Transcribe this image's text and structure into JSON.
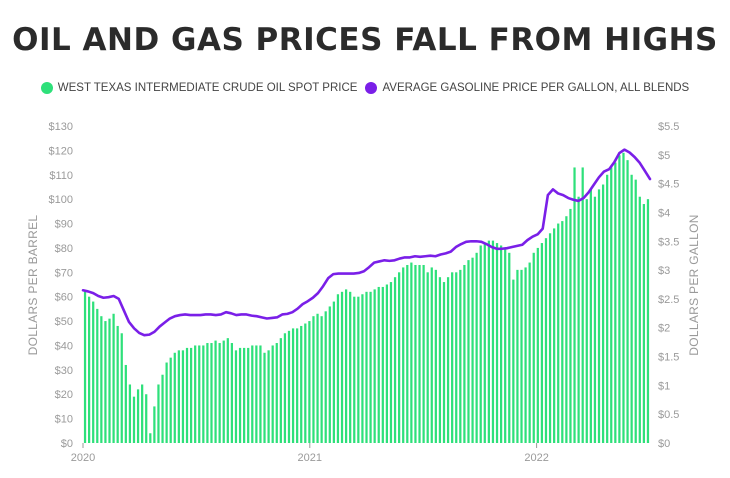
{
  "chart_data": {
    "type": "bar+line",
    "title": "OIL AND GAS PRICES FALL FROM HIGHS",
    "legend_placement": "top",
    "grid": false,
    "colors": {
      "bars": "#2ee07a",
      "line": "#7a1fe8"
    },
    "x_start": "2020-01",
    "x_end": "2022-06",
    "x_ticks": [
      {
        "label": "2020",
        "date": "2020-01"
      },
      {
        "label": "2021",
        "date": "2021-01"
      },
      {
        "label": "2022",
        "date": "2022-01"
      }
    ],
    "left_axis": {
      "label": "DOLLARS PER BARREL",
      "range": [
        0,
        130
      ],
      "ticks": [
        "$0",
        "$10",
        "$20",
        "$30",
        "$40",
        "$50",
        "$60",
        "$70",
        "$80",
        "$90",
        "$100",
        "$110",
        "$120",
        "$130"
      ]
    },
    "right_axis": {
      "label": "DOLLARS PER GALLON",
      "range": [
        0,
        5.5
      ],
      "ticks": [
        "$0",
        "$0.5",
        "$1",
        "$1.5",
        "$2",
        "$2.5",
        "$3",
        "$3.5",
        "$4",
        "$4.5",
        "$5",
        "$5.5"
      ]
    },
    "series": [
      {
        "name": "WEST TEXAS INTERMEDIATE CRUDE OIL SPOT PRICE",
        "kind": "bar",
        "axis": "left",
        "values": [
          62,
          60,
          58,
          55,
          52,
          50,
          51,
          53,
          48,
          45,
          32,
          24,
          19,
          22,
          24,
          20,
          4,
          15,
          24,
          28,
          33,
          35,
          37,
          38,
          38,
          39,
          39,
          40,
          40,
          40,
          41,
          41,
          42,
          41,
          42,
          43,
          41,
          38,
          39,
          39,
          39,
          40,
          40,
          40,
          37,
          38,
          40,
          41,
          43,
          45,
          46,
          47,
          47,
          48,
          49,
          50,
          52,
          53,
          52,
          54,
          56,
          58,
          61,
          62,
          63,
          62,
          60,
          60,
          61,
          62,
          62,
          63,
          64,
          64,
          65,
          66,
          68,
          70,
          72,
          73,
          74,
          73,
          73,
          73,
          70,
          72,
          71,
          68,
          66,
          68,
          70,
          70,
          71,
          73,
          75,
          76,
          78,
          81,
          82,
          83,
          83,
          82,
          81,
          80,
          78,
          67,
          71,
          71,
          72,
          74,
          78,
          80,
          82,
          84,
          86,
          88,
          90,
          91,
          93,
          96,
          113,
          101,
          113,
          100,
          104,
          101,
          104,
          106,
          110,
          113,
          115,
          118,
          119,
          116,
          110,
          108,
          101,
          98,
          100
        ]
      },
      {
        "name": "AVERAGE GASOLINE PRICE PER GALLON, ALL BLENDS",
        "kind": "line",
        "axis": "right",
        "values": [
          2.65,
          2.63,
          2.6,
          2.55,
          2.52,
          2.53,
          2.55,
          2.5,
          2.3,
          2.1,
          1.99,
          1.91,
          1.87,
          1.88,
          1.93,
          2.02,
          2.09,
          2.16,
          2.2,
          2.22,
          2.23,
          2.22,
          2.22,
          2.22,
          2.23,
          2.23,
          2.22,
          2.23,
          2.27,
          2.25,
          2.22,
          2.23,
          2.23,
          2.21,
          2.2,
          2.18,
          2.16,
          2.17,
          2.18,
          2.23,
          2.24,
          2.27,
          2.33,
          2.41,
          2.46,
          2.52,
          2.6,
          2.72,
          2.86,
          2.93,
          2.94,
          2.94,
          2.94,
          2.94,
          2.95,
          2.98,
          3.05,
          3.13,
          3.15,
          3.17,
          3.16,
          3.17,
          3.2,
          3.22,
          3.22,
          3.24,
          3.23,
          3.24,
          3.25,
          3.24,
          3.27,
          3.29,
          3.32,
          3.4,
          3.45,
          3.49,
          3.5,
          3.5,
          3.49,
          3.45,
          3.4,
          3.37,
          3.37,
          3.38,
          3.4,
          3.42,
          3.44,
          3.52,
          3.58,
          3.62,
          3.72,
          4.3,
          4.4,
          4.33,
          4.3,
          4.25,
          4.22,
          4.2,
          4.25,
          4.35,
          4.48,
          4.61,
          4.71,
          4.75,
          4.87,
          5.03,
          5.09,
          5.04,
          4.96,
          4.86,
          4.72,
          4.58
        ]
      }
    ]
  }
}
